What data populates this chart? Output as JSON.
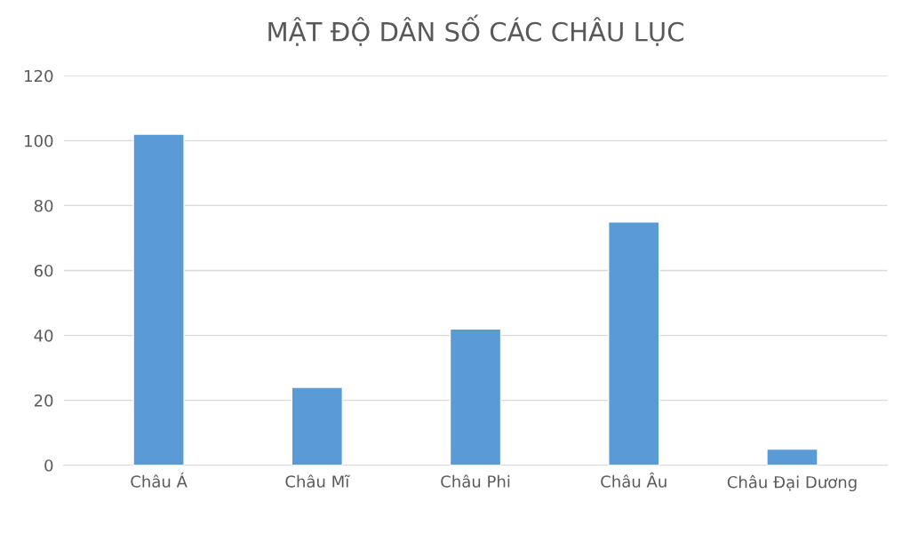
{
  "chart_data": {
    "type": "bar",
    "title": "MẬT ĐỘ DÂN SỐ CÁC CHÂU LỤC",
    "categories": [
      "Châu Á",
      "Châu Mĩ",
      "Châu Phi",
      "Châu Âu",
      "Châu Đại Dương"
    ],
    "values": [
      102,
      24,
      42,
      75,
      5
    ],
    "color": "#5b9bd5",
    "ylim": [
      0,
      120
    ],
    "yticks": [
      0,
      20,
      40,
      60,
      80,
      100,
      120
    ],
    "grid": "y"
  }
}
